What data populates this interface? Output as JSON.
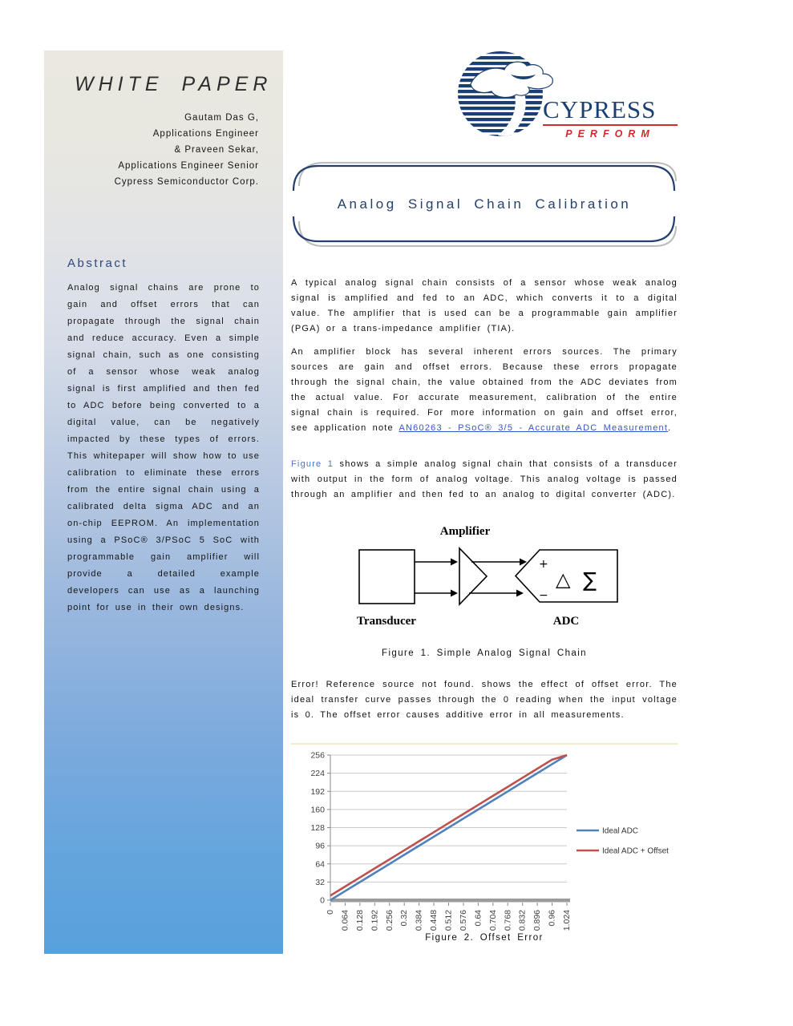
{
  "colors": {
    "brand_navy": "#1c3f72",
    "brand_red": "#d22b2f",
    "link_blue": "#3a53c5",
    "figref_blue": "#4a76c8",
    "sidebar_top": "#eae8df",
    "sidebar_bottom": "#57a1dc"
  },
  "sidebar": {
    "kicker": "WHITE PAPER",
    "authors": [
      "Gautam Das G,",
      "Applications Engineer",
      "& Praveen Sekar,",
      "Applications Engineer Senior",
      "Cypress Semiconductor Corp."
    ],
    "abstract_title": "Abstract",
    "abstract_body": "Analog signal chains are prone to gain and offset errors that can propagate through the signal chain and reduce accuracy. Even a simple signal chain, such as one consisting of a sensor whose weak analog signal is first amplified and then fed to ADC before being converted to a digital value, can be negatively impacted by these types of errors. This whitepaper will show how to use calibration to eliminate these errors from the entire signal chain using a calibrated delta sigma ADC and an on-chip EEPROM. An implementation using a PSoC® 3/PSoC 5 SoC with programmable gain amplifier will provide a detailed example developers can use as a launching point for use in their own designs."
  },
  "logo": {
    "brand": "CYPRESS",
    "tagline": "PERFORM"
  },
  "title": "Analog Signal Chain Calibration",
  "paragraphs": {
    "p1": "A typical analog signal chain consists of a sensor whose weak analog signal is amplified and fed to an ADC, which converts it to a digital value. The amplifier that is used can be a programmable gain amplifier (PGA) or a trans-impedance amplifier (TIA).",
    "p2_start": "An amplifier block has several inherent errors sources.  The primary sources are gain and offset errors. Because these errors propagate through the signal chain, the value obtained from the ADC deviates from the actual value. For accurate measurement, calibration of the entire signal chain is required. For more information on gain and offset error, see application note ",
    "p2_link": "AN60263 - PSoC® 3/5 - Accurate ADC Measurement",
    "p2_end": ".",
    "p3_link": "Figure 1",
    "p3_rest": " shows a simple analog signal chain that consists of a transducer with output in the form of analog voltage. This analog voltage is passed through an amplifier and then fed to an analog to digital converter (ADC).",
    "p4": "Error! Reference source not found. shows the effect of offset error. The ideal transfer curve passes through the 0 reading when the input voltage is 0. The offset error causes additive error in all measurements."
  },
  "figure1": {
    "amplifier_label": "Amplifier",
    "transducer_label": "Transducer",
    "adc_label": "ADC",
    "plus": "+",
    "minus": "−",
    "delta": "△",
    "sigma": "∑",
    "caption": "Figure 1. Simple Analog Signal Chain"
  },
  "figure2": {
    "caption": "Figure 2. Offset Error"
  },
  "chart_data": {
    "type": "line",
    "title": "",
    "xlabel": "",
    "ylabel": "",
    "xlim": [
      0,
      1.024
    ],
    "ylim": [
      0,
      256
    ],
    "yticks": [
      0,
      32,
      64,
      96,
      128,
      160,
      192,
      224,
      256
    ],
    "x": [
      0,
      0.064,
      0.128,
      0.192,
      0.256,
      0.32,
      0.384,
      0.448,
      0.512,
      0.576,
      0.64,
      0.704,
      0.768,
      0.832,
      0.896,
      0.96,
      1.024
    ],
    "xlabels": [
      "0",
      "0.064",
      "0.128",
      "0.192",
      "0.256",
      "0.32",
      "0.384",
      "0.448",
      "0.512",
      "0.576",
      "0.64",
      "0.704",
      "0.768",
      "0.832",
      "0.896",
      "0.96",
      "1.024"
    ],
    "grid": true,
    "legend_position": "right",
    "series": [
      {
        "name": "Ideal ADC",
        "color": "#4f81bd",
        "values": [
          0,
          16,
          32,
          48,
          64,
          80,
          96,
          112,
          128,
          144,
          160,
          176,
          192,
          208,
          224,
          240,
          256
        ]
      },
      {
        "name": "Ideal ADC + Offset",
        "color": "#c0504d",
        "values": [
          8,
          24,
          40,
          56,
          72,
          88,
          104,
          120,
          136,
          152,
          168,
          184,
          200,
          216,
          232,
          248,
          256
        ]
      }
    ]
  }
}
